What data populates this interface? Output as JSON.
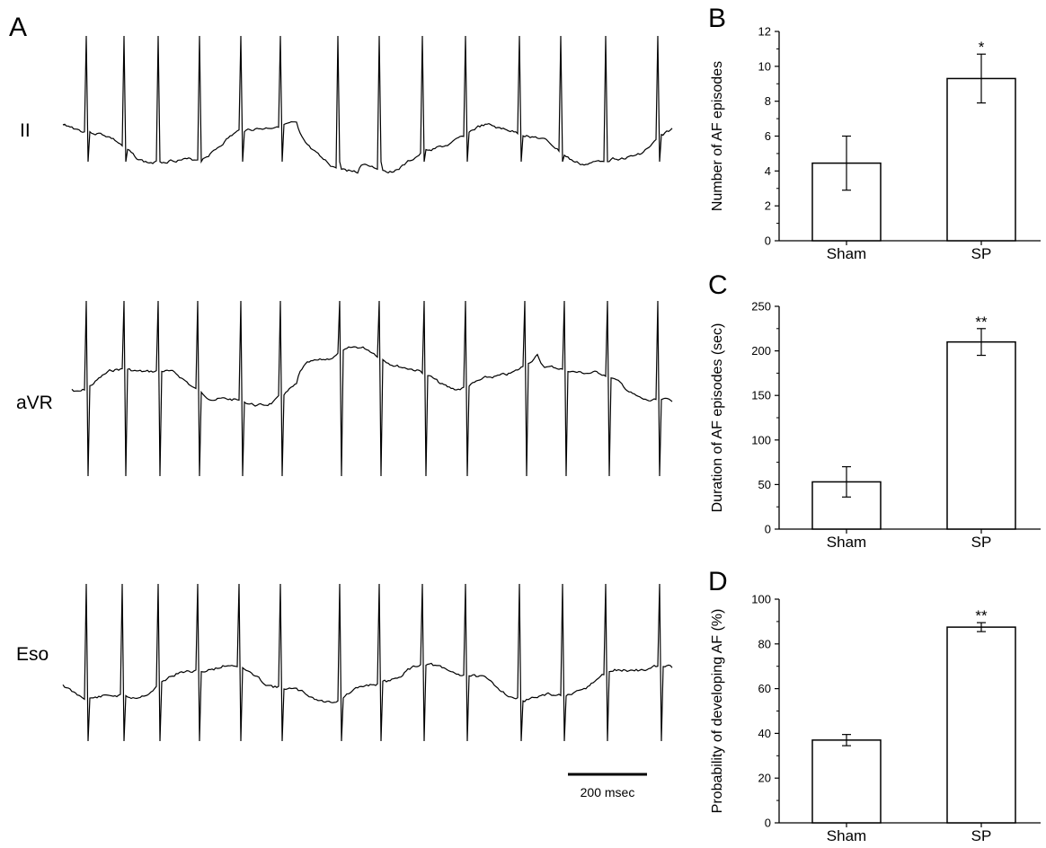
{
  "panel_a": {
    "letter": "A",
    "traces": [
      {
        "label": "II"
      },
      {
        "label": "aVR"
      },
      {
        "label": "Eso"
      }
    ],
    "scale_bar": {
      "label": "200 msec"
    }
  },
  "chart_data": [
    {
      "panel": "B",
      "type": "bar",
      "categories": [
        "Sham",
        "SP"
      ],
      "values": [
        4.45,
        9.3
      ],
      "errors": [
        1.55,
        1.4
      ],
      "significance": [
        "",
        "*"
      ],
      "ylabel": "Number of AF episodes",
      "ylim": [
        0,
        12
      ],
      "yticks": [
        0,
        2,
        4,
        6,
        8,
        10,
        12
      ],
      "bar_color": "#ffffff",
      "grid": false
    },
    {
      "panel": "C",
      "type": "bar",
      "categories": [
        "Sham",
        "SP"
      ],
      "values": [
        53,
        210
      ],
      "errors": [
        17,
        15
      ],
      "significance": [
        "",
        "**"
      ],
      "ylabel": "Duration of AF episodes (sec)",
      "ylim": [
        0,
        250
      ],
      "yticks": [
        0,
        50,
        100,
        150,
        200,
        250
      ],
      "bar_color": "#ffffff",
      "grid": false
    },
    {
      "panel": "D",
      "type": "bar",
      "categories": [
        "Sham",
        "SP"
      ],
      "values": [
        37,
        87.5
      ],
      "errors": [
        2.5,
        2.0
      ],
      "significance": [
        "",
        "**"
      ],
      "ylabel": "Probability of developing AF (%)",
      "ylim": [
        0,
        100
      ],
      "yticks": [
        0,
        20,
        40,
        60,
        80,
        100
      ],
      "bar_color": "#ffffff",
      "grid": false
    }
  ]
}
